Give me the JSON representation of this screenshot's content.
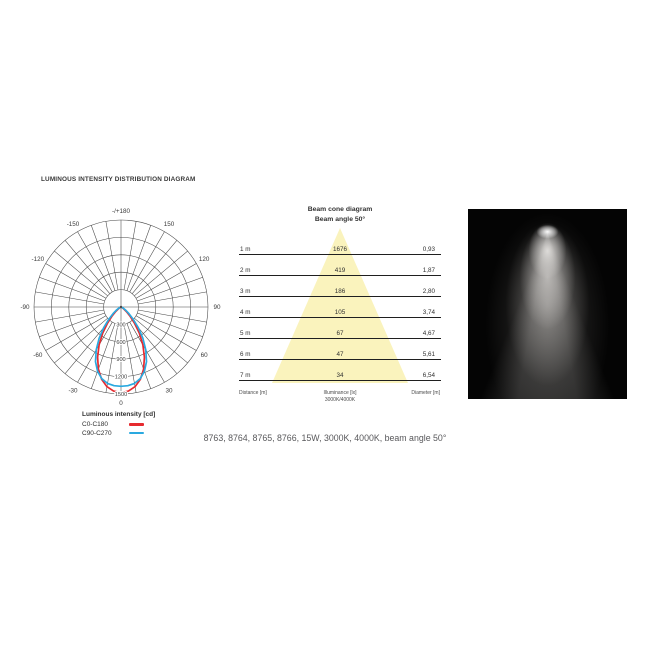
{
  "title": "LUMINOUS INTENSITY DISTRIBUTION DIAGRAM",
  "caption": "8763, 8764, 8765, 8766, 15W, 3000K, 4000K, beam angle 50°",
  "colors": {
    "c0_c180_red": "#e62a2f",
    "c90_c270_blue": "#2aa9e0",
    "cone_fill": "#faf3bd",
    "grid_line": "#454545",
    "text_dark": "#3a3a3a",
    "caption_gray": "#58585b"
  },
  "legend": {
    "title": "Luminous intensity [cd]",
    "items": [
      {
        "label": "C0-C180",
        "color": "#e62a2f"
      },
      {
        "label": "C90-C270",
        "color": "#2aa9e0"
      }
    ]
  },
  "beam_cone": {
    "title": "Beam cone diagram",
    "subtitle": "Beam angle 50°",
    "columns": {
      "left": "Distance [m]",
      "center_line1": "Illuminance [lx]",
      "center_line2": "3000K/4000K",
      "right": "Diameter [m]"
    },
    "rows": [
      {
        "distance": "1 m",
        "illuminance": "1676",
        "diameter": "0,93"
      },
      {
        "distance": "2 m",
        "illuminance": "419",
        "diameter": "1,87"
      },
      {
        "distance": "3 m",
        "illuminance": "186",
        "diameter": "2,80"
      },
      {
        "distance": "4 m",
        "illuminance": "105",
        "diameter": "3,74"
      },
      {
        "distance": "5 m",
        "illuminance": "67",
        "diameter": "4,67"
      },
      {
        "distance": "6 m",
        "illuminance": "47",
        "diameter": "5,61"
      },
      {
        "distance": "7 m",
        "illuminance": "34",
        "diameter": "6,54"
      }
    ]
  },
  "chart_data": {
    "type": "line",
    "subtype": "polar-luminous-intensity",
    "title": "LUMINOUS INTENSITY DISTRIBUTION DIAGRAM",
    "unit": "cd",
    "radial_ticks": [
      300,
      600,
      900,
      1200,
      1500
    ],
    "radial_max": 1500,
    "angle_step_deg": 10,
    "angle_labels": [
      {
        "angle": 0,
        "text": "0"
      },
      {
        "angle": 30,
        "text": "30"
      },
      {
        "angle": 60,
        "text": "60"
      },
      {
        "angle": 90,
        "text": "90"
      },
      {
        "angle": 120,
        "text": "120"
      },
      {
        "angle": 150,
        "text": "150"
      },
      {
        "angle": 180,
        "text": "-/+180"
      },
      {
        "angle": -150,
        "text": "-150"
      },
      {
        "angle": -120,
        "text": "-120"
      },
      {
        "angle": -90,
        "text": "-90"
      },
      {
        "angle": -60,
        "text": "-60"
      },
      {
        "angle": -30,
        "text": "-30"
      }
    ],
    "series": [
      {
        "name": "C0-C180",
        "color": "#e62a2f",
        "points": [
          [
            -90,
            0
          ],
          [
            -80,
            3
          ],
          [
            -70,
            9
          ],
          [
            -60,
            30
          ],
          [
            -55,
            62
          ],
          [
            -50,
            120
          ],
          [
            -45,
            215
          ],
          [
            -40,
            360
          ],
          [
            -35,
            550
          ],
          [
            -30,
            755
          ],
          [
            -25,
            955
          ],
          [
            -20,
            1140
          ],
          [
            -15,
            1290
          ],
          [
            -10,
            1395
          ],
          [
            -5,
            1455
          ],
          [
            0,
            1475
          ],
          [
            5,
            1455
          ],
          [
            10,
            1395
          ],
          [
            15,
            1290
          ],
          [
            20,
            1140
          ],
          [
            25,
            955
          ],
          [
            30,
            755
          ],
          [
            35,
            550
          ],
          [
            40,
            360
          ],
          [
            45,
            215
          ],
          [
            50,
            120
          ],
          [
            55,
            62
          ],
          [
            60,
            30
          ],
          [
            70,
            9
          ],
          [
            80,
            3
          ],
          [
            90,
            0
          ]
        ]
      },
      {
        "name": "C90-C270",
        "color": "#2aa9e0",
        "points": [
          [
            -90,
            0
          ],
          [
            -80,
            5
          ],
          [
            -70,
            16
          ],
          [
            -60,
            55
          ],
          [
            -55,
            100
          ],
          [
            -50,
            178
          ],
          [
            -45,
            295
          ],
          [
            -40,
            465
          ],
          [
            -35,
            655
          ],
          [
            -30,
            855
          ],
          [
            -25,
            1040
          ],
          [
            -20,
            1180
          ],
          [
            -15,
            1280
          ],
          [
            -10,
            1338
          ],
          [
            -5,
            1362
          ],
          [
            0,
            1368
          ],
          [
            5,
            1362
          ],
          [
            10,
            1338
          ],
          [
            15,
            1280
          ],
          [
            20,
            1180
          ],
          [
            25,
            1040
          ],
          [
            30,
            855
          ],
          [
            35,
            655
          ],
          [
            40,
            465
          ],
          [
            45,
            295
          ],
          [
            50,
            178
          ],
          [
            55,
            100
          ],
          [
            60,
            55
          ],
          [
            70,
            16
          ],
          [
            80,
            5
          ],
          [
            90,
            0
          ]
        ]
      }
    ]
  }
}
